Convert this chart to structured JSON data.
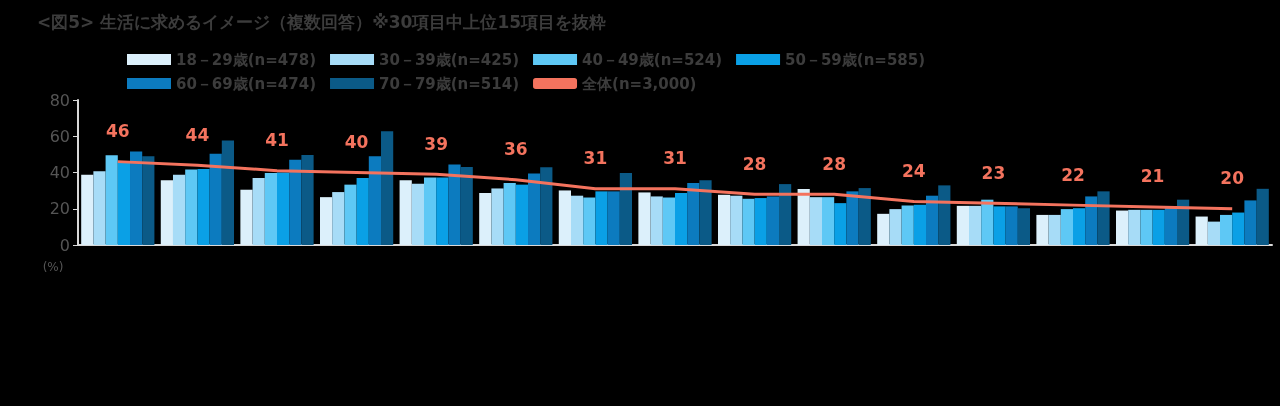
{
  "chart_data": {
    "type": "bar",
    "title": "<図5> 生活に求めるイメージ（複数回答）※30項目中上位15項目を抜粋",
    "ylabel": "(%)",
    "categories": [
      null,
      null,
      null,
      null,
      null,
      null,
      null,
      null,
      null,
      null,
      null,
      null,
      null,
      null,
      null
    ],
    "series": [
      {
        "name": "18－29歳(n=478)",
        "color": "#dcf0fb",
        "values": [
          38.8,
          35.7,
          30.5,
          26.4,
          35.7,
          28.7,
          30.1,
          29,
          27.7,
          30.9,
          17.2,
          21.6,
          16.6,
          19,
          15.7
        ]
      },
      {
        "name": "30－39歳(n=425)",
        "color": "#a7dcf7",
        "values": [
          40.7,
          38.8,
          37,
          29.2,
          33.8,
          31.2,
          27.2,
          26.8,
          27.2,
          26.4,
          19.8,
          21.6,
          16.6,
          19.4,
          12.9
        ]
      },
      {
        "name": "40－49歳(n=524)",
        "color": "#5ec8f5",
        "values": [
          49.5,
          41.6,
          39.7,
          33.3,
          37.3,
          34.2,
          26.2,
          26.2,
          25.5,
          26.4,
          21.8,
          25,
          19.8,
          19.4,
          16.6
        ]
      },
      {
        "name": "50－59歳(n=585)",
        "color": "#0aa0e6",
        "values": [
          46,
          42,
          40,
          37,
          37.3,
          33.3,
          29.6,
          28.7,
          25.9,
          23.1,
          22.2,
          21.3,
          20.3,
          19.4,
          17.9
        ]
      },
      {
        "name": "60－69歳(n=474)",
        "color": "#0c7bbf",
        "values": [
          51.6,
          50.3,
          47,
          49,
          44.4,
          39.4,
          29.6,
          34.2,
          26.8,
          29.6,
          27.2,
          21.3,
          26.8,
          21.3,
          24.6
        ]
      },
      {
        "name": "70－79歳(n=514)",
        "color": "#0b5a87",
        "values": [
          49,
          57.7,
          49.7,
          62.8,
          43,
          42.9,
          39.7,
          35.7,
          33.6,
          31.4,
          32.9,
          20.3,
          29.6,
          25,
          31
        ]
      },
      {
        "name": "全体(n=3,000)",
        "type": "line",
        "color": "#f4735e",
        "data_labels": true,
        "marker": "none",
        "values": [
          46,
          44,
          41,
          40,
          39,
          36,
          31,
          31,
          28,
          28,
          24,
          23,
          22,
          21,
          20
        ]
      }
    ],
    "ylim": [
      0,
      80
    ],
    "yticks": [
      0,
      20,
      40,
      60,
      80
    ],
    "grid": false,
    "legend": "top"
  }
}
